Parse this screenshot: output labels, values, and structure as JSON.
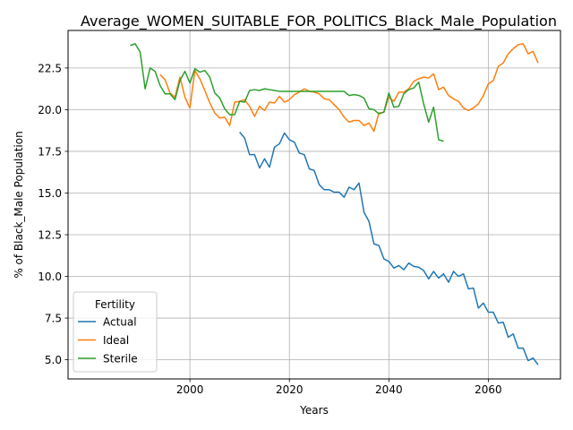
{
  "colors": {
    "Actual": "#1f77b4",
    "Ideal": "#ff7f0e",
    "Sterile": "#2ca02c",
    "grid": "#b0b0b0",
    "frame": "#000000"
  },
  "chart_data": {
    "type": "line",
    "title": "Average_WOMEN_SUITABLE_FOR_POLITICS_Black_Male_Population",
    "xlabel": "Years",
    "ylabel": "% of Black_Male Population",
    "xlim": [
      1975.5,
      2074.5
    ],
    "ylim": [
      3.85,
      24.75
    ],
    "xticks": [
      2000,
      2020,
      2040,
      2060
    ],
    "yticks": [
      5.0,
      7.5,
      10.0,
      12.5,
      15.0,
      17.5,
      20.0,
      22.5
    ],
    "grid": true,
    "legend": {
      "title": "Fertility",
      "position": "lower-left"
    },
    "series": [
      {
        "name": "Actual",
        "x": [
          2010,
          2011,
          2012,
          2013,
          2014,
          2015,
          2016,
          2017,
          2018,
          2019,
          2020,
          2021,
          2022,
          2023,
          2024,
          2025,
          2026,
          2027,
          2028,
          2029,
          2030,
          2031,
          2032,
          2033,
          2034,
          2035,
          2036,
          2037,
          2038,
          2039,
          2040,
          2041,
          2042,
          2043,
          2044,
          2045,
          2046,
          2047,
          2048,
          2049,
          2050,
          2051,
          2052,
          2053,
          2054,
          2055,
          2056,
          2057,
          2058,
          2059,
          2060,
          2061,
          2062,
          2063,
          2064,
          2065,
          2066,
          2067,
          2068,
          2069,
          2070
        ],
        "y": [
          18.65,
          18.3,
          17.3,
          17.3,
          16.5,
          17.05,
          16.55,
          17.75,
          17.95,
          18.6,
          18.2,
          18.05,
          17.4,
          17.3,
          16.45,
          16.35,
          15.5,
          15.2,
          15.2,
          15.05,
          15.05,
          14.75,
          15.35,
          15.2,
          15.6,
          13.85,
          13.3,
          11.95,
          11.85,
          11.05,
          10.9,
          10.5,
          10.65,
          10.4,
          10.8,
          10.6,
          10.55,
          10.35,
          9.85,
          10.3,
          9.9,
          10.15,
          9.65,
          10.3,
          10.0,
          10.15,
          9.25,
          9.3,
          8.1,
          8.4,
          7.85,
          7.85,
          7.2,
          7.25,
          6.35,
          6.55,
          5.7,
          5.7,
          4.95,
          5.1,
          4.7
        ]
      },
      {
        "name": "Ideal",
        "x": [
          1994,
          1995,
          1996,
          1997,
          1998,
          1999,
          2000,
          2001,
          2002,
          2003,
          2004,
          2005,
          2006,
          2007,
          2008,
          2009,
          2010,
          2011,
          2012,
          2013,
          2014,
          2015,
          2016,
          2017,
          2018,
          2019,
          2020,
          2021,
          2022,
          2023,
          2024,
          2025,
          2026,
          2027,
          2028,
          2029,
          2030,
          2031,
          2032,
          2033,
          2034,
          2035,
          2036,
          2037,
          2038,
          2039,
          2040,
          2041,
          2042,
          2043,
          2044,
          2045,
          2046,
          2047,
          2048,
          2049,
          2050,
          2051,
          2052,
          2053,
          2054,
          2055,
          2056,
          2057,
          2058,
          2059,
          2060,
          2061,
          2062,
          2063,
          2064,
          2065,
          2066,
          2067,
          2068,
          2069,
          2070
        ],
        "y": [
          22.1,
          21.8,
          21.0,
          20.75,
          21.95,
          20.75,
          20.1,
          22.35,
          21.85,
          21.15,
          20.4,
          19.8,
          19.5,
          19.55,
          19.05,
          20.45,
          20.5,
          20.6,
          20.2,
          19.6,
          20.2,
          19.95,
          20.45,
          20.4,
          20.8,
          20.45,
          20.6,
          20.9,
          21.05,
          21.25,
          21.1,
          21.05,
          20.95,
          20.65,
          20.6,
          20.3,
          20.0,
          19.55,
          19.25,
          19.35,
          19.35,
          19.05,
          19.2,
          18.7,
          19.8,
          19.85,
          20.75,
          20.5,
          21.05,
          21.05,
          21.25,
          21.7,
          21.85,
          21.95,
          21.9,
          22.15,
          21.2,
          21.35,
          20.85,
          20.65,
          20.5,
          20.1,
          19.95,
          20.1,
          20.35,
          20.85,
          21.55,
          21.75,
          22.6,
          22.8,
          23.35,
          23.65,
          23.9,
          23.95,
          23.35,
          23.5,
          22.8
        ]
      },
      {
        "name": "Sterile",
        "x": [
          1988,
          1989,
          1990,
          1991,
          1992,
          1993,
          1994,
          1995,
          1996,
          1997,
          1998,
          1999,
          2000,
          2001,
          2002,
          2003,
          2004,
          2005,
          2006,
          2007,
          2008,
          2009,
          2010,
          2011,
          2012,
          2013,
          2014,
          2015,
          2016,
          2017,
          2018,
          2019,
          2020,
          2021,
          2022,
          2023,
          2024,
          2025,
          2026,
          2027,
          2028,
          2029,
          2030,
          2031,
          2032,
          2033,
          2034,
          2035,
          2036,
          2037,
          2038,
          2039,
          2040,
          2041,
          2042,
          2043,
          2044,
          2045,
          2046,
          2047,
          2048,
          2049,
          2050,
          2051
        ],
        "y": [
          23.85,
          23.95,
          23.45,
          21.25,
          22.5,
          22.3,
          21.45,
          20.95,
          20.95,
          20.6,
          21.75,
          22.3,
          21.6,
          22.45,
          22.25,
          22.35,
          21.95,
          21.0,
          20.7,
          20.05,
          19.7,
          19.7,
          20.5,
          20.45,
          21.15,
          21.2,
          21.15,
          21.25,
          21.2,
          21.15,
          21.1,
          21.1,
          21.1,
          21.1,
          21.1,
          21.1,
          21.1,
          21.1,
          21.1,
          21.1,
          21.1,
          21.1,
          21.1,
          21.1,
          20.85,
          20.9,
          20.85,
          20.7,
          20.05,
          20.0,
          19.75,
          19.85,
          21.0,
          20.15,
          20.2,
          20.95,
          21.2,
          21.3,
          21.65,
          20.35,
          19.25,
          20.15,
          18.2,
          18.1
        ]
      }
    ]
  }
}
